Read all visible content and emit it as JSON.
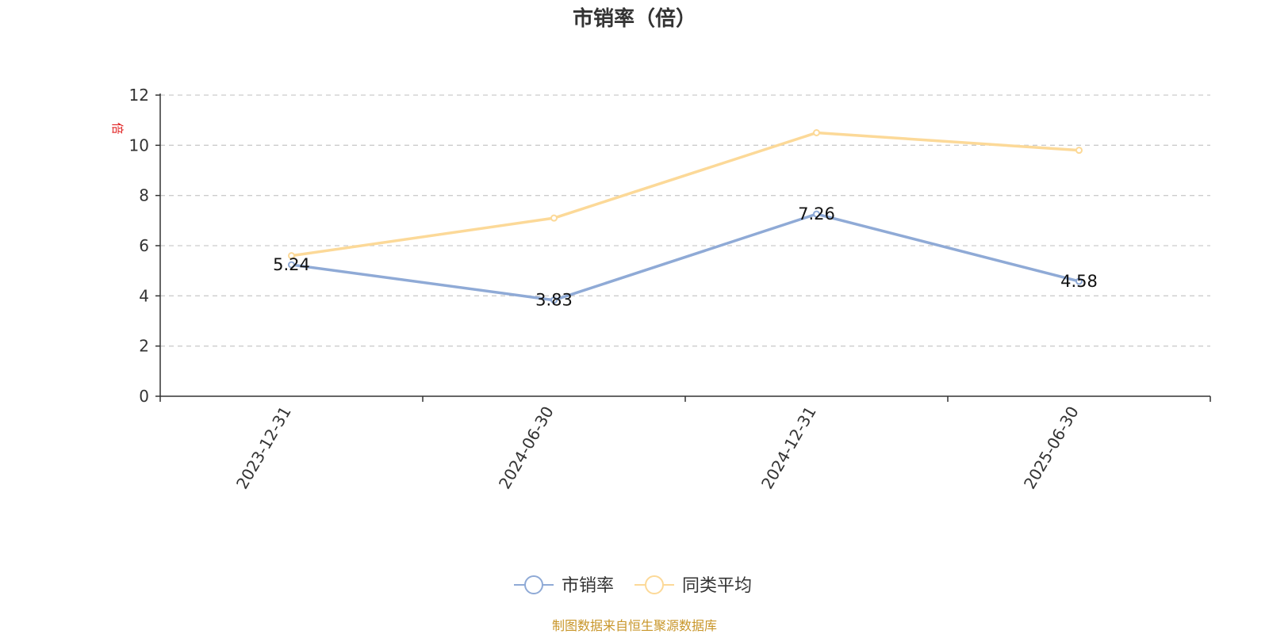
{
  "chart_data": {
    "type": "line",
    "title": "市销率（倍）",
    "y_unit": "倍",
    "categories": [
      "2023-12-31",
      "2024-06-30",
      "2024-12-31",
      "2025-06-30"
    ],
    "ylim": [
      0,
      12
    ],
    "yticks": [
      0,
      2,
      4,
      6,
      8,
      10,
      12
    ],
    "grid": true,
    "legend_position": "bottom-center",
    "series": [
      {
        "name": "市销率",
        "color": "#8faad6",
        "values": [
          5.24,
          3.83,
          7.26,
          4.58
        ],
        "labels": [
          "5.24",
          "3.83",
          "7.26",
          "4.58"
        ]
      },
      {
        "name": "同类平均",
        "color": "#fcd998",
        "values": [
          5.6,
          7.1,
          10.5,
          9.8
        ],
        "labels": []
      }
    ]
  },
  "source_text": "制图数据来自恒生聚源数据库",
  "colors": {
    "unit": "#e02020",
    "source": "#c8962a",
    "axis": "#333333",
    "grid": "#cccccc"
  }
}
